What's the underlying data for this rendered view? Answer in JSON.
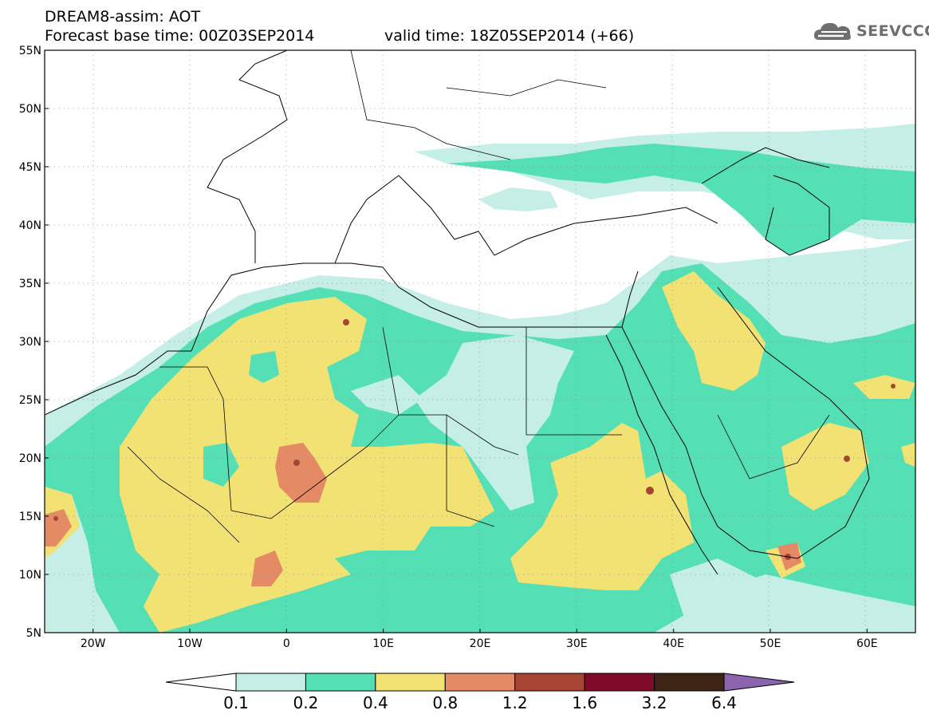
{
  "header": {
    "title": "DREAM8-assim: AOT",
    "base_time": "Forecast base time: 00Z03SEP2014",
    "valid_time": "valid time: 18Z05SEP2014 (+66)"
  },
  "logo": {
    "text": "SEEVCCC",
    "icon": "cloud-icon"
  },
  "map": {
    "lon_range": [
      -25,
      65
    ],
    "lat_range": [
      5,
      55
    ],
    "lat_ticks": [
      {
        "value": 55,
        "label": "55N"
      },
      {
        "value": 50,
        "label": "50N"
      },
      {
        "value": 45,
        "label": "45N"
      },
      {
        "value": 40,
        "label": "40N"
      },
      {
        "value": 35,
        "label": "35N"
      },
      {
        "value": 30,
        "label": "30N"
      },
      {
        "value": 25,
        "label": "25N"
      },
      {
        "value": 20,
        "label": "20N"
      },
      {
        "value": 15,
        "label": "15N"
      },
      {
        "value": 10,
        "label": "10N"
      },
      {
        "value": 5,
        "label": "5N"
      }
    ],
    "lon_ticks": [
      {
        "value": -20,
        "label": "20W"
      },
      {
        "value": -10,
        "label": "10W"
      },
      {
        "value": 0,
        "label": "0"
      },
      {
        "value": 10,
        "label": "10E"
      },
      {
        "value": 20,
        "label": "20E"
      },
      {
        "value": 30,
        "label": "30E"
      },
      {
        "value": 40,
        "label": "40E"
      },
      {
        "value": 50,
        "label": "50E"
      },
      {
        "value": 60,
        "label": "60E"
      }
    ],
    "grid": "dotted"
  },
  "colorbar": {
    "levels": [
      "0.1",
      "0.2",
      "0.4",
      "0.8",
      "1.2",
      "1.6",
      "3.2",
      "6.4"
    ],
    "colors": [
      "#ffffff",
      "#c4eee6",
      "#55dfb4",
      "#f2e173",
      "#e48a64",
      "#a84434",
      "#800b28",
      "#3e2414",
      "#8a64ac"
    ]
  }
}
